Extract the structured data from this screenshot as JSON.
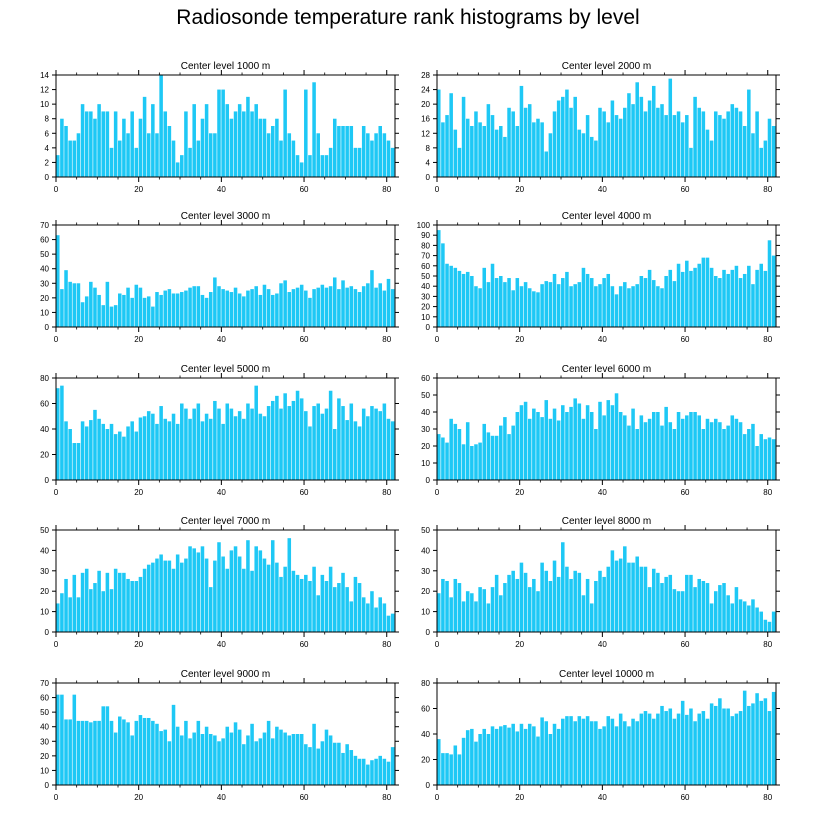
{
  "title": "Radiosonde temperature rank histograms by level",
  "chart_data": [
    {
      "type": "bar",
      "title": "Center level 1000 m",
      "xlim": [
        0,
        82
      ],
      "ylim": [
        0,
        14
      ],
      "xticks": [
        0,
        20,
        40,
        60,
        80
      ],
      "yticks": [
        0,
        2,
        4,
        6,
        8,
        10,
        12,
        14
      ],
      "bar_color": "#1ec8f5",
      "values": [
        3,
        8,
        7,
        5,
        5,
        6,
        10,
        9,
        9,
        8,
        10,
        9,
        9,
        4,
        9,
        5,
        8,
        6,
        9,
        4,
        8,
        11,
        6,
        10,
        6,
        14,
        9,
        7,
        5,
        2,
        3,
        9,
        4,
        10,
        5,
        8,
        10,
        6,
        6,
        12,
        12,
        10,
        8,
        9,
        10,
        9,
        11,
        9,
        10,
        8,
        8,
        6,
        7,
        8,
        5,
        12,
        6,
        5,
        3,
        2,
        12,
        3,
        13,
        6,
        3,
        3,
        4,
        8,
        7,
        7,
        7,
        7,
        4,
        4,
        7,
        6,
        5,
        6,
        7,
        6,
        5,
        4
      ]
    },
    {
      "type": "bar",
      "title": "Center level 2000 m",
      "xlim": [
        0,
        82
      ],
      "ylim": [
        0,
        28
      ],
      "xticks": [
        0,
        20,
        40,
        60,
        80
      ],
      "yticks": [
        0,
        4,
        8,
        12,
        16,
        20,
        24,
        28
      ],
      "bar_color": "#1ec8f5",
      "values": [
        24,
        15,
        17,
        23,
        13,
        8,
        22,
        16,
        14,
        18,
        15,
        14,
        20,
        17,
        13,
        14,
        11,
        19,
        18,
        14,
        25,
        19,
        20,
        15,
        16,
        15,
        7,
        12,
        18,
        21,
        22,
        24,
        19,
        22,
        13,
        12,
        17,
        11,
        10,
        19,
        18,
        15,
        21,
        17,
        16,
        19,
        23,
        20,
        26,
        22,
        18,
        21,
        25,
        19,
        20,
        17,
        27,
        17,
        18,
        15,
        17,
        8,
        22,
        19,
        18,
        13,
        10,
        18,
        17,
        16,
        18,
        20,
        19,
        18,
        14,
        24,
        12,
        18,
        8,
        10,
        16,
        14
      ]
    },
    {
      "type": "bar",
      "title": "Center level 3000 m",
      "xlim": [
        0,
        82
      ],
      "ylim": [
        0,
        70
      ],
      "xticks": [
        0,
        20,
        40,
        60,
        80
      ],
      "yticks": [
        0,
        10,
        20,
        30,
        40,
        50,
        60,
        70
      ],
      "bar_color": "#1ec8f5",
      "values": [
        63,
        26,
        39,
        31,
        30,
        30,
        17,
        21,
        31,
        27,
        22,
        15,
        31,
        14,
        15,
        23,
        22,
        27,
        20,
        29,
        27,
        20,
        21,
        14,
        24,
        22,
        25,
        26,
        23,
        23,
        24,
        25,
        27,
        28,
        28,
        22,
        20,
        24,
        34,
        28,
        26,
        25,
        24,
        27,
        23,
        21,
        25,
        26,
        28,
        22,
        29,
        26,
        22,
        23,
        30,
        32,
        24,
        26,
        27,
        29,
        25,
        20,
        26,
        27,
        29,
        27,
        28,
        34,
        26,
        32,
        27,
        28,
        26,
        24,
        28,
        30,
        39,
        27,
        30,
        25,
        33,
        26
      ]
    },
    {
      "type": "bar",
      "title": "Center level 4000 m",
      "xlim": [
        0,
        82
      ],
      "ylim": [
        0,
        100
      ],
      "xticks": [
        0,
        20,
        40,
        60,
        80
      ],
      "yticks": [
        0,
        10,
        20,
        30,
        40,
        50,
        60,
        70,
        80,
        90,
        100
      ],
      "bar_color": "#1ec8f5",
      "values": [
        95,
        82,
        62,
        60,
        58,
        55,
        52,
        54,
        50,
        40,
        38,
        58,
        44,
        62,
        48,
        50,
        44,
        48,
        36,
        48,
        40,
        44,
        38,
        35,
        34,
        42,
        45,
        44,
        52,
        42,
        48,
        54,
        40,
        42,
        44,
        58,
        52,
        48,
        40,
        42,
        48,
        52,
        40,
        32,
        40,
        44,
        38,
        40,
        42,
        50,
        48,
        56,
        46,
        40,
        38,
        50,
        56,
        45,
        62,
        54,
        65,
        55,
        58,
        62,
        68,
        68,
        58,
        50,
        48,
        56,
        52,
        56,
        60,
        48,
        52,
        60,
        42,
        56,
        62,
        55,
        85,
        70
      ]
    },
    {
      "type": "bar",
      "title": "Center level 5000 m",
      "xlim": [
        0,
        82
      ],
      "ylim": [
        0,
        80
      ],
      "xticks": [
        0,
        20,
        40,
        60,
        80
      ],
      "yticks": [
        0,
        20,
        40,
        60,
        80
      ],
      "bar_color": "#1ec8f5",
      "values": [
        72,
        74,
        46,
        40,
        29,
        29,
        46,
        42,
        47,
        55,
        48,
        44,
        40,
        44,
        36,
        38,
        34,
        42,
        46,
        38,
        49,
        50,
        54,
        52,
        44,
        58,
        48,
        46,
        52,
        44,
        60,
        56,
        48,
        56,
        60,
        46,
        52,
        48,
        62,
        56,
        44,
        60,
        56,
        50,
        54,
        48,
        60,
        56,
        74,
        52,
        50,
        58,
        62,
        66,
        56,
        68,
        58,
        62,
        70,
        64,
        54,
        42,
        58,
        60,
        52,
        56,
        70,
        40,
        64,
        58,
        47,
        60,
        46,
        42,
        56,
        50,
        58,
        56,
        54,
        60,
        48,
        46
      ]
    },
    {
      "type": "bar",
      "title": "Center level 6000 m",
      "xlim": [
        0,
        82
      ],
      "ylim": [
        0,
        60
      ],
      "xticks": [
        0,
        20,
        40,
        60,
        80
      ],
      "yticks": [
        0,
        10,
        20,
        30,
        40,
        50,
        60
      ],
      "bar_color": "#1ec8f5",
      "values": [
        27,
        25,
        22,
        36,
        33,
        30,
        21,
        34,
        20,
        21,
        22,
        33,
        28,
        26,
        26,
        32,
        37,
        27,
        32,
        40,
        44,
        46,
        36,
        42,
        40,
        37,
        47,
        36,
        42,
        35,
        44,
        40,
        43,
        48,
        45,
        36,
        44,
        40,
        30,
        46,
        38,
        47,
        44,
        51,
        40,
        38,
        32,
        42,
        30,
        38,
        34,
        36,
        40,
        40,
        32,
        43,
        34,
        30,
        40,
        36,
        38,
        40,
        40,
        38,
        30,
        36,
        34,
        36,
        34,
        30,
        32,
        38,
        36,
        34,
        27,
        30,
        33,
        20,
        27,
        24,
        25,
        24
      ]
    },
    {
      "type": "bar",
      "title": "Center level 7000 m",
      "xlim": [
        0,
        82
      ],
      "ylim": [
        0,
        50
      ],
      "xticks": [
        0,
        20,
        40,
        60,
        80
      ],
      "yticks": [
        0,
        10,
        20,
        30,
        40,
        50
      ],
      "bar_color": "#1ec8f5",
      "values": [
        14,
        19,
        26,
        17,
        28,
        17,
        29,
        31,
        21,
        24,
        30,
        20,
        29,
        21,
        31,
        29,
        29,
        26,
        25,
        25,
        27,
        31,
        33,
        34,
        36,
        38,
        35,
        35,
        31,
        38,
        34,
        36,
        42,
        41,
        39,
        42,
        36,
        22,
        35,
        44,
        37,
        31,
        40,
        42,
        37,
        31,
        45,
        30,
        42,
        40,
        36,
        33,
        45,
        34,
        27,
        32,
        46,
        30,
        28,
        26,
        28,
        25,
        32,
        18,
        28,
        25,
        32,
        22,
        24,
        29,
        22,
        15,
        27,
        24,
        17,
        14,
        20,
        12,
        17,
        14,
        8,
        9
      ]
    },
    {
      "type": "bar",
      "title": "Center level 8000 m",
      "xlim": [
        0,
        82
      ],
      "ylim": [
        0,
        50
      ],
      "xticks": [
        0,
        20,
        40,
        60,
        80
      ],
      "yticks": [
        0,
        10,
        20,
        30,
        40,
        50
      ],
      "bar_color": "#1ec8f5",
      "values": [
        19,
        26,
        25,
        17,
        26,
        24,
        15,
        20,
        19,
        15,
        22,
        21,
        14,
        22,
        28,
        18,
        24,
        28,
        30,
        26,
        34,
        29,
        22,
        26,
        20,
        34,
        30,
        25,
        35,
        27,
        44,
        32,
        26,
        30,
        29,
        18,
        26,
        14,
        25,
        30,
        27,
        32,
        40,
        35,
        36,
        42,
        34,
        34,
        37,
        32,
        32,
        22,
        31,
        29,
        24,
        27,
        28,
        21,
        20,
        20,
        28,
        28,
        22,
        26,
        25,
        24,
        14,
        20,
        23,
        24,
        18,
        14,
        22,
        16,
        15,
        13,
        16,
        12,
        10,
        6,
        5,
        10
      ]
    },
    {
      "type": "bar",
      "title": "Center level 9000 m",
      "xlim": [
        0,
        82
      ],
      "ylim": [
        0,
        70
      ],
      "xticks": [
        0,
        20,
        40,
        60,
        80
      ],
      "yticks": [
        0,
        10,
        20,
        30,
        40,
        50,
        60,
        70
      ],
      "bar_color": "#1ec8f5",
      "values": [
        62,
        62,
        45,
        45,
        62,
        44,
        44,
        44,
        43,
        44,
        44,
        54,
        54,
        44,
        36,
        47,
        45,
        43,
        34,
        44,
        48,
        46,
        46,
        44,
        42,
        37,
        38,
        30,
        55,
        40,
        34,
        44,
        32,
        36,
        44,
        35,
        40,
        35,
        34,
        30,
        32,
        40,
        36,
        43,
        38,
        28,
        34,
        42,
        30,
        32,
        36,
        44,
        32,
        40,
        38,
        36,
        34,
        35,
        35,
        35,
        28,
        26,
        42,
        25,
        30,
        38,
        34,
        29,
        29,
        22,
        28,
        24,
        20,
        18,
        18,
        14,
        17,
        18,
        20,
        18,
        16,
        26
      ]
    },
    {
      "type": "bar",
      "title": "Center level 10000 m",
      "xlim": [
        0,
        82
      ],
      "ylim": [
        0,
        80
      ],
      "xticks": [
        0,
        20,
        40,
        60,
        80
      ],
      "yticks": [
        0,
        20,
        40,
        60,
        80
      ],
      "bar_color": "#1ec8f5",
      "values": [
        36,
        25,
        25,
        24,
        31,
        24,
        37,
        43,
        44,
        34,
        40,
        44,
        40,
        46,
        44,
        46,
        47,
        45,
        48,
        42,
        48,
        44,
        48,
        46,
        38,
        53,
        50,
        40,
        48,
        44,
        52,
        54,
        54,
        50,
        54,
        52,
        54,
        50,
        50,
        44,
        46,
        54,
        52,
        46,
        56,
        50,
        46,
        52,
        50,
        56,
        58,
        56,
        52,
        56,
        62,
        58,
        60,
        52,
        56,
        66,
        55,
        60,
        50,
        56,
        58,
        52,
        64,
        62,
        68,
        60,
        60,
        54,
        56,
        58,
        74,
        62,
        64,
        72,
        66,
        68,
        58,
        73
      ]
    }
  ]
}
